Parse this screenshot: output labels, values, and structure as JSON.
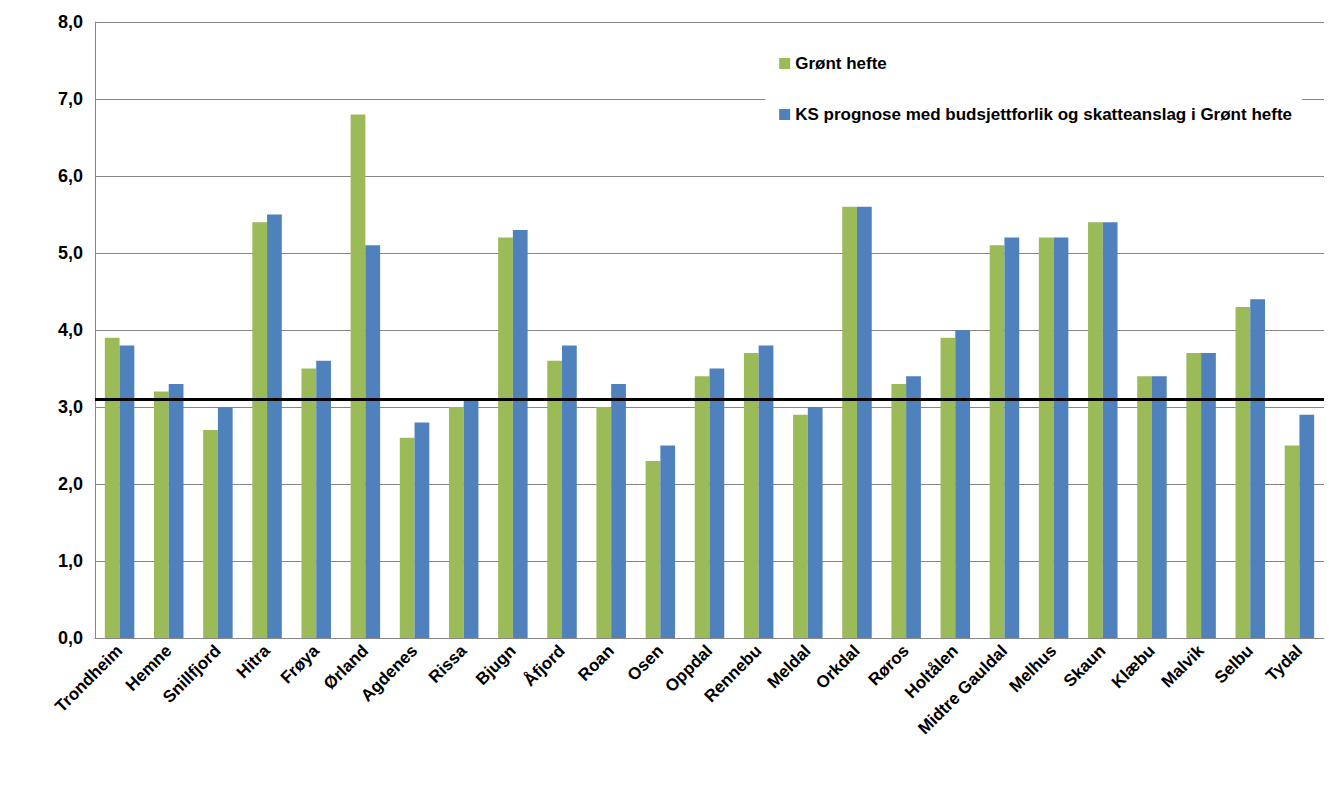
{
  "chart_data": {
    "type": "bar",
    "categories": [
      "Trondheim",
      "Hemne",
      "Snillfjord",
      "Hitra",
      "Frøya",
      "Ørland",
      "Agdenes",
      "Rissa",
      "Bjugn",
      "Åfjord",
      "Roan",
      "Osen",
      "Oppdal",
      "Rennebu",
      "Meldal",
      "Orkdal",
      "Røros",
      "Holtålen",
      "Midtre Gauldal",
      "Melhus",
      "Skaun",
      "Klæbu",
      "Malvik",
      "Selbu",
      "Tydal"
    ],
    "series": [
      {
        "name": "Grønt hefte",
        "color": "#9bbb59",
        "values": [
          3.9,
          3.2,
          2.7,
          5.4,
          3.5,
          6.8,
          2.6,
          3.0,
          5.2,
          3.6,
          3.0,
          2.3,
          3.4,
          3.7,
          2.9,
          5.6,
          3.3,
          3.9,
          5.1,
          5.2,
          5.4,
          3.4,
          3.7,
          4.3,
          2.5
        ]
      },
      {
        "name": "KS prognose med budsjettforlik og skatteanslag i Grønt hefte",
        "color": "#4f81bd",
        "values": [
          3.8,
          3.3,
          3.0,
          5.5,
          3.6,
          5.1,
          2.8,
          3.1,
          5.3,
          3.8,
          3.3,
          2.5,
          3.5,
          3.8,
          3.0,
          5.6,
          3.4,
          4.0,
          5.2,
          5.2,
          5.4,
          3.4,
          3.7,
          4.4,
          2.9
        ]
      }
    ],
    "reference_line": {
      "value": 3.1,
      "color": "#000000"
    },
    "ylim": [
      0,
      8
    ],
    "yticks": [
      {
        "value": 0,
        "label": "0,0"
      },
      {
        "value": 1,
        "label": "1,0"
      },
      {
        "value": 2,
        "label": "2,0"
      },
      {
        "value": 3,
        "label": "3,0"
      },
      {
        "value": 4,
        "label": "4,0"
      },
      {
        "value": 5,
        "label": "5,0"
      },
      {
        "value": 6,
        "label": "6,0"
      },
      {
        "value": 7,
        "label": "7,0"
      },
      {
        "value": 8,
        "label": "8,0"
      }
    ],
    "grid": true,
    "legend": "top-right"
  }
}
